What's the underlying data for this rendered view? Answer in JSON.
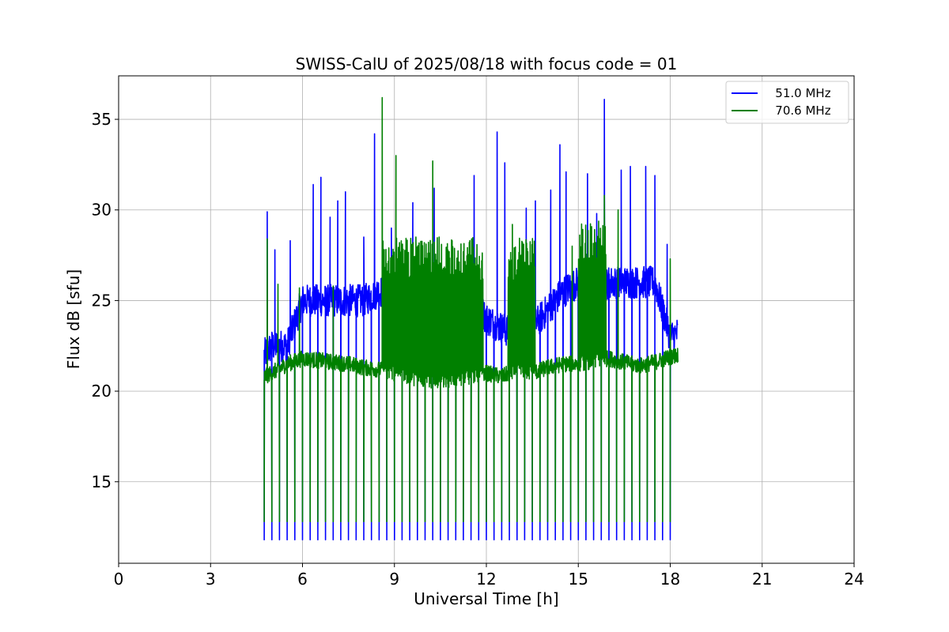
{
  "chart_data": {
    "type": "line",
    "title": "SWISS-CalU of 2025/08/18 with focus code = 01",
    "xlabel": "Universal Time [h]",
    "ylabel": "Flux dB [sfu]",
    "xlim": [
      0,
      24
    ],
    "ylim": [
      10.5,
      37.4
    ],
    "xticks": [
      0,
      3,
      6,
      9,
      12,
      15,
      18,
      21,
      24
    ],
    "yticks": [
      15,
      20,
      25,
      30,
      35
    ],
    "grid": true,
    "legend_position": "top-right",
    "calibration_dips": {
      "start_h": 4.75,
      "step_h": 0.25,
      "count": 54,
      "floor": {
        "51.0 MHz": 11.8,
        "70.6 MHz": 12.8
      }
    },
    "series": [
      {
        "name": "   51.0 MHz",
        "color": "#0000ff",
        "x": [
          4.75,
          5.0,
          5.5,
          6.0,
          6.5,
          7.0,
          7.5,
          8.0,
          8.5,
          9.0,
          9.5,
          10.0,
          10.5,
          11.0,
          11.5,
          12.0,
          12.5,
          13.0,
          13.5,
          14.0,
          14.5,
          15.0,
          15.5,
          16.0,
          16.5,
          17.0,
          17.5,
          18.0,
          18.25
        ],
        "y": [
          22.0,
          22.5,
          22.5,
          25.0,
          25.0,
          25.0,
          25.0,
          25.0,
          25.5,
          25.5,
          25.5,
          25.5,
          25.5,
          25.5,
          25.5,
          24.0,
          23.5,
          23.0,
          23.5,
          24.5,
          25.5,
          26.0,
          25.5,
          26.0,
          26.0,
          26.0,
          26.0,
          23.0,
          23.2
        ],
        "peaks": [
          {
            "x": 4.85,
            "y": 29.9
          },
          {
            "x": 5.1,
            "y": 27.8
          },
          {
            "x": 5.6,
            "y": 28.3
          },
          {
            "x": 6.35,
            "y": 31.4
          },
          {
            "x": 6.6,
            "y": 31.8
          },
          {
            "x": 6.9,
            "y": 29.6
          },
          {
            "x": 7.15,
            "y": 30.5
          },
          {
            "x": 7.4,
            "y": 31.0
          },
          {
            "x": 8.0,
            "y": 28.5
          },
          {
            "x": 8.35,
            "y": 34.2
          },
          {
            "x": 8.9,
            "y": 29.0
          },
          {
            "x": 9.6,
            "y": 30.4
          },
          {
            "x": 10.3,
            "y": 31.2
          },
          {
            "x": 11.6,
            "y": 31.9
          },
          {
            "x": 12.35,
            "y": 34.3
          },
          {
            "x": 12.6,
            "y": 32.6
          },
          {
            "x": 13.3,
            "y": 30.1
          },
          {
            "x": 13.6,
            "y": 30.5
          },
          {
            "x": 14.1,
            "y": 31.1
          },
          {
            "x": 14.4,
            "y": 33.6
          },
          {
            "x": 14.6,
            "y": 32.1
          },
          {
            "x": 15.3,
            "y": 32.0
          },
          {
            "x": 15.6,
            "y": 29.8
          },
          {
            "x": 15.85,
            "y": 36.1
          },
          {
            "x": 16.4,
            "y": 32.2
          },
          {
            "x": 16.7,
            "y": 32.4
          },
          {
            "x": 17.2,
            "y": 32.4
          },
          {
            "x": 17.5,
            "y": 31.9
          },
          {
            "x": 17.9,
            "y": 28.1
          }
        ]
      },
      {
        "name": "   70.6 MHz",
        "color": "#008000",
        "x": [
          4.75,
          5.0,
          5.5,
          6.0,
          6.5,
          7.0,
          7.5,
          8.0,
          8.5,
          9.0,
          9.5,
          10.0,
          10.5,
          11.0,
          11.5,
          12.0,
          12.5,
          13.0,
          13.5,
          14.0,
          14.5,
          15.0,
          15.5,
          16.0,
          16.5,
          17.0,
          17.5,
          18.0,
          18.25
        ],
        "y": [
          20.8,
          21.0,
          21.5,
          21.8,
          21.7,
          21.6,
          21.5,
          21.3,
          21.2,
          21.0,
          20.8,
          20.6,
          20.6,
          20.7,
          20.8,
          21.0,
          20.8,
          21.2,
          21.0,
          21.3,
          21.5,
          21.5,
          21.7,
          21.8,
          21.6,
          21.4,
          21.6,
          21.9,
          22.0
        ],
        "bursts": [
          {
            "from": 8.6,
            "to": 9.3,
            "hi": 28.5
          },
          {
            "from": 9.3,
            "to": 11.9,
            "hi": 28.5
          },
          {
            "from": 12.7,
            "to": 13.6,
            "hi": 28.5
          },
          {
            "from": 15.0,
            "to": 15.9,
            "hi": 29.5
          }
        ],
        "peaks": [
          {
            "x": 4.85,
            "y": 28.4
          },
          {
            "x": 5.2,
            "y": 25.9
          },
          {
            "x": 5.9,
            "y": 25.7
          },
          {
            "x": 7.0,
            "y": 25.8
          },
          {
            "x": 8.6,
            "y": 36.2
          },
          {
            "x": 9.05,
            "y": 33.0
          },
          {
            "x": 9.7,
            "y": 28.5
          },
          {
            "x": 10.25,
            "y": 32.7
          },
          {
            "x": 12.85,
            "y": 29.2
          },
          {
            "x": 14.8,
            "y": 28.0
          },
          {
            "x": 15.85,
            "y": 30.8
          },
          {
            "x": 16.3,
            "y": 30.0
          },
          {
            "x": 18.0,
            "y": 27.3
          }
        ]
      }
    ]
  }
}
